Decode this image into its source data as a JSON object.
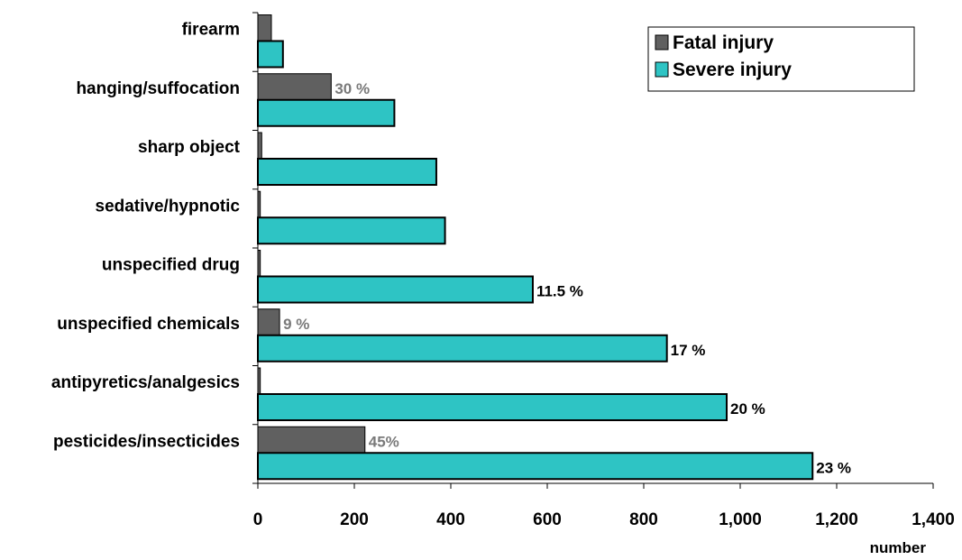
{
  "chart_data": {
    "type": "bar",
    "orientation": "horizontal",
    "categories": [
      "firearm",
      "hanging/suffocation",
      "sharp object",
      "sedative/hypnotic",
      "unspecified drug",
      "unspecified chemicals",
      "antipyretics/analgesics",
      "pesticides/insecticides"
    ],
    "series": [
      {
        "name": "Fatal injury",
        "color": "#606060",
        "values": [
          28,
          152,
          8,
          5,
          5,
          45,
          5,
          222
        ],
        "labels": [
          "",
          "30 %",
          "",
          "",
          "",
          "9 %",
          "",
          "45%"
        ],
        "label_color": "#7a7a7a"
      },
      {
        "name": "Severe injury",
        "color": "#2ec4c4",
        "values": [
          52,
          283,
          370,
          388,
          570,
          848,
          972,
          1150
        ],
        "labels": [
          "",
          "",
          "",
          "",
          "11.5 %",
          "17 %",
          "20 %",
          "23 %"
        ],
        "label_color": "#000000"
      }
    ],
    "xlabel": "number",
    "ylabel": "",
    "xlim": [
      0,
      1400
    ],
    "xticks": [
      "0",
      "200",
      "400",
      "600",
      "800",
      "1,000",
      "1,200",
      "1,400"
    ],
    "grid": false,
    "legend_position": "top-right"
  }
}
